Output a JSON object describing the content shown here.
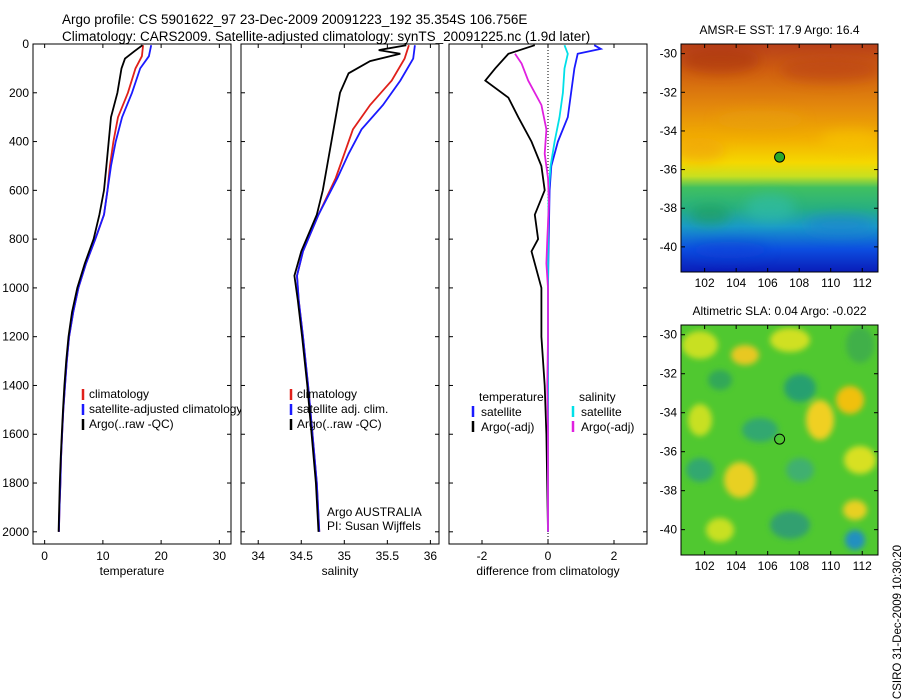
{
  "header": {
    "line1": "Argo profile: CS 5901622_97 23-Dec-2009 20091223_192 35.354S 106.756E",
    "line2": "Climatology: CARS2009. Satellite-adjusted climatology: synTS_20091225.nc (1.9d later)"
  },
  "side_label": "CSIRO 31-Dec-2009 10:30:20",
  "colors": {
    "red": "#e0201a",
    "blue": "#1a1aff",
    "black": "#000000",
    "cyan": "#00e0e8",
    "magenta": "#e020e0"
  },
  "chart_data": [
    {
      "type": "line",
      "xlabel": "temperature",
      "ylabel": "",
      "xlim": [
        -2,
        32
      ],
      "ylim": [
        2050,
        0
      ],
      "xticks": [
        0,
        10,
        20,
        30
      ],
      "yticks": [
        0,
        200,
        400,
        600,
        800,
        1000,
        1200,
        1400,
        1600,
        1800,
        2000
      ],
      "legend": {
        "placement": "lower-right",
        "entries": [
          "climatology",
          "satellite-adjusted climatology",
          "Argo(..raw -QC)"
        ]
      },
      "series": [
        {
          "name": "climatology",
          "color": "red",
          "points": [
            [
              16.9,
              5
            ],
            [
              16.7,
              50
            ],
            [
              15.6,
              100
            ],
            [
              14.3,
              200
            ],
            [
              12.6,
              300
            ],
            [
              11.8,
              400
            ],
            [
              11.2,
              500
            ],
            [
              10.8,
              600
            ],
            [
              10.2,
              700
            ],
            [
              8.7,
              800
            ],
            [
              7.1,
              900
            ],
            [
              5.8,
              1000
            ],
            [
              4.9,
              1100
            ],
            [
              4.2,
              1200
            ],
            [
              3.8,
              1300
            ],
            [
              3.5,
              1400
            ],
            [
              3.2,
              1500
            ],
            [
              3.0,
              1600
            ],
            [
              2.8,
              1700
            ],
            [
              2.7,
              1800
            ],
            [
              2.55,
              1900
            ],
            [
              2.45,
              2000
            ]
          ]
        },
        {
          "name": "satellite-adjusted climatology",
          "color": "blue",
          "points": [
            [
              18.3,
              5
            ],
            [
              17.9,
              50
            ],
            [
              16.4,
              100
            ],
            [
              15.0,
              200
            ],
            [
              13.3,
              300
            ],
            [
              12.2,
              400
            ],
            [
              11.4,
              500
            ],
            [
              10.8,
              600
            ],
            [
              10.2,
              700
            ],
            [
              8.7,
              800
            ],
            [
              7.1,
              900
            ],
            [
              5.8,
              1000
            ],
            [
              4.9,
              1100
            ],
            [
              4.2,
              1200
            ],
            [
              3.8,
              1300
            ],
            [
              3.5,
              1400
            ],
            [
              3.2,
              1500
            ],
            [
              3.0,
              1600
            ],
            [
              2.8,
              1700
            ],
            [
              2.7,
              1800
            ],
            [
              2.55,
              1900
            ],
            [
              2.45,
              2000
            ]
          ]
        },
        {
          "name": "Argo(..raw -QC)",
          "color": "black",
          "points": [
            [
              16.8,
              5
            ],
            [
              15.4,
              30
            ],
            [
              13.8,
              60
            ],
            [
              13.2,
              100
            ],
            [
              12.5,
              200
            ],
            [
              11.4,
              300
            ],
            [
              11.0,
              400
            ],
            [
              10.6,
              500
            ],
            [
              10.2,
              600
            ],
            [
              9.4,
              700
            ],
            [
              8.4,
              800
            ],
            [
              6.9,
              900
            ],
            [
              5.6,
              1000
            ],
            [
              4.7,
              1100
            ],
            [
              4.1,
              1200
            ],
            [
              3.7,
              1300
            ],
            [
              3.4,
              1400
            ],
            [
              3.15,
              1500
            ],
            [
              2.95,
              1600
            ],
            [
              2.75,
              1700
            ],
            [
              2.6,
              1800
            ],
            [
              2.5,
              1900
            ],
            [
              2.4,
              2000
            ]
          ]
        }
      ]
    },
    {
      "type": "line",
      "xlabel": "salinity",
      "ylabel": "",
      "xlim": [
        33.8,
        36.1
      ],
      "ylim": [
        2050,
        0
      ],
      "xticks": [
        34,
        34.5,
        35,
        35.5,
        36
      ],
      "xticklabels": [
        "34",
        "34.5",
        "35",
        "35.5",
        "36"
      ],
      "yticks": [
        0,
        200,
        400,
        600,
        800,
        1000,
        1200,
        1400,
        1600,
        1800,
        2000
      ],
      "legend": {
        "placement": "lower-right",
        "entries": [
          "climatology",
          "satellite adj. clim.",
          "Argo(..raw -QC)"
        ]
      },
      "annotation": [
        "Argo AUSTRALIA",
        "PI: Susan Wijffels"
      ],
      "series": [
        {
          "name": "climatology",
          "color": "red",
          "points": [
            [
              35.75,
              5
            ],
            [
              35.7,
              60
            ],
            [
              35.55,
              150
            ],
            [
              35.3,
              250
            ],
            [
              35.1,
              350
            ],
            [
              35.0,
              450
            ],
            [
              34.9,
              550
            ],
            [
              34.7,
              700
            ],
            [
              34.52,
              850
            ],
            [
              34.45,
              950
            ],
            [
              34.47,
              1050
            ],
            [
              34.52,
              1200
            ],
            [
              34.58,
              1400
            ],
            [
              34.63,
              1600
            ],
            [
              34.68,
              1800
            ],
            [
              34.71,
              2000
            ]
          ]
        },
        {
          "name": "satellite adj. clim.",
          "color": "blue",
          "points": [
            [
              35.82,
              5
            ],
            [
              35.8,
              60
            ],
            [
              35.65,
              150
            ],
            [
              35.45,
              250
            ],
            [
              35.2,
              350
            ],
            [
              35.05,
              450
            ],
            [
              34.92,
              550
            ],
            [
              34.7,
              700
            ],
            [
              34.52,
              850
            ],
            [
              34.45,
              950
            ],
            [
              34.47,
              1050
            ],
            [
              34.52,
              1200
            ],
            [
              34.58,
              1400
            ],
            [
              34.63,
              1600
            ],
            [
              34.68,
              1800
            ],
            [
              34.71,
              2000
            ]
          ]
        },
        {
          "name": "Argo(..raw -QC)",
          "color": "black",
          "points": [
            [
              35.72,
              5
            ],
            [
              35.4,
              25
            ],
            [
              35.65,
              40
            ],
            [
              35.3,
              70
            ],
            [
              35.05,
              120
            ],
            [
              34.95,
              200
            ],
            [
              34.9,
              300
            ],
            [
              34.85,
              400
            ],
            [
              34.8,
              500
            ],
            [
              34.75,
              600
            ],
            [
              34.68,
              700
            ],
            [
              34.5,
              850
            ],
            [
              34.42,
              950
            ],
            [
              34.46,
              1050
            ],
            [
              34.51,
              1200
            ],
            [
              34.57,
              1400
            ],
            [
              34.62,
              1600
            ],
            [
              34.67,
              1800
            ],
            [
              34.7,
              2000
            ]
          ]
        }
      ]
    },
    {
      "type": "line",
      "xlabel": "difference from climatology",
      "ylabel": "",
      "xlim": [
        -3,
        3
      ],
      "ylim": [
        2050,
        0
      ],
      "xticks": [
        -2,
        0,
        2
      ],
      "yticks": [
        0,
        200,
        400,
        600,
        800,
        1000,
        1200,
        1400,
        1600,
        1800,
        2000
      ],
      "legend": {
        "placement": "lower-center",
        "columns": [
          {
            "header": "temperature",
            "entries": [
              "satellite",
              "Argo(-adj)"
            ]
          },
          {
            "header": "salinity",
            "entries": [
              "satellite",
              "Argo(-adj)"
            ]
          }
        ]
      },
      "series": [
        {
          "name": "temperature satellite",
          "color": "blue",
          "points": [
            [
              1.4,
              5
            ],
            [
              1.6,
              20
            ],
            [
              0.9,
              40
            ],
            [
              0.8,
              100
            ],
            [
              0.7,
              200
            ],
            [
              0.6,
              300
            ],
            [
              0.3,
              400
            ],
            [
              0.1,
              500
            ],
            [
              0.05,
              600
            ],
            [
              0.02,
              800
            ],
            [
              0,
              1000
            ],
            [
              0,
              2000
            ]
          ]
        },
        {
          "name": "temperature Argo(-adj)",
          "color": "black",
          "points": [
            [
              -0.4,
              5
            ],
            [
              -1.2,
              40
            ],
            [
              -1.6,
              100
            ],
            [
              -1.9,
              150
            ],
            [
              -1.2,
              220
            ],
            [
              -0.9,
              300
            ],
            [
              -0.5,
              400
            ],
            [
              -0.2,
              500
            ],
            [
              -0.1,
              600
            ],
            [
              -0.4,
              700
            ],
            [
              -0.3,
              800
            ],
            [
              -0.5,
              850
            ],
            [
              -0.3,
              950
            ],
            [
              -0.2,
              1000
            ],
            [
              -0.2,
              1200
            ],
            [
              -0.1,
              1400
            ],
            [
              -0.05,
              1600
            ],
            [
              0,
              2000
            ]
          ]
        },
        {
          "name": "salinity satellite",
          "color": "cyan",
          "points": [
            [
              0.5,
              5
            ],
            [
              0.6,
              40
            ],
            [
              0.5,
              100
            ],
            [
              0.45,
              200
            ],
            [
              0.35,
              300
            ],
            [
              0.2,
              400
            ],
            [
              0.08,
              500
            ],
            [
              0.02,
              600
            ],
            [
              0,
              800
            ],
            [
              0,
              2000
            ]
          ]
        },
        {
          "name": "salinity Argo(-adj)",
          "color": "magenta",
          "points": [
            [
              -1.0,
              40
            ],
            [
              -0.8,
              80
            ],
            [
              -0.6,
              150
            ],
            [
              -0.2,
              250
            ],
            [
              -0.05,
              350
            ],
            [
              -0.1,
              450
            ],
            [
              0,
              550
            ],
            [
              0.03,
              650
            ],
            [
              -0.02,
              800
            ],
            [
              -0.05,
              900
            ],
            [
              0,
              1000
            ],
            [
              0,
              1200
            ],
            [
              -0.02,
              1400
            ],
            [
              0,
              1600
            ],
            [
              0,
              2000
            ]
          ]
        }
      ]
    },
    {
      "type": "heatmap",
      "title": "AMSR-E SST: 17.9 Argo: 16.4",
      "xlim": [
        100.5,
        113
      ],
      "ylim": [
        -41.3,
        -29.5
      ],
      "xticks": [
        102,
        104,
        106,
        108,
        110,
        112
      ],
      "yticks": [
        -30,
        -32,
        -34,
        -36,
        -38,
        -40
      ],
      "marker": [
        106.756,
        -35.354
      ]
    },
    {
      "type": "heatmap",
      "title": "Altimetric SLA: 0.04 Argo: -0.022",
      "xlim": [
        100.5,
        113
      ],
      "ylim": [
        -41.3,
        -29.5
      ],
      "xticks": [
        102,
        104,
        106,
        108,
        110,
        112
      ],
      "yticks": [
        -30,
        -32,
        -34,
        -36,
        -38,
        -40
      ],
      "marker": [
        106.756,
        -35.354
      ]
    }
  ]
}
